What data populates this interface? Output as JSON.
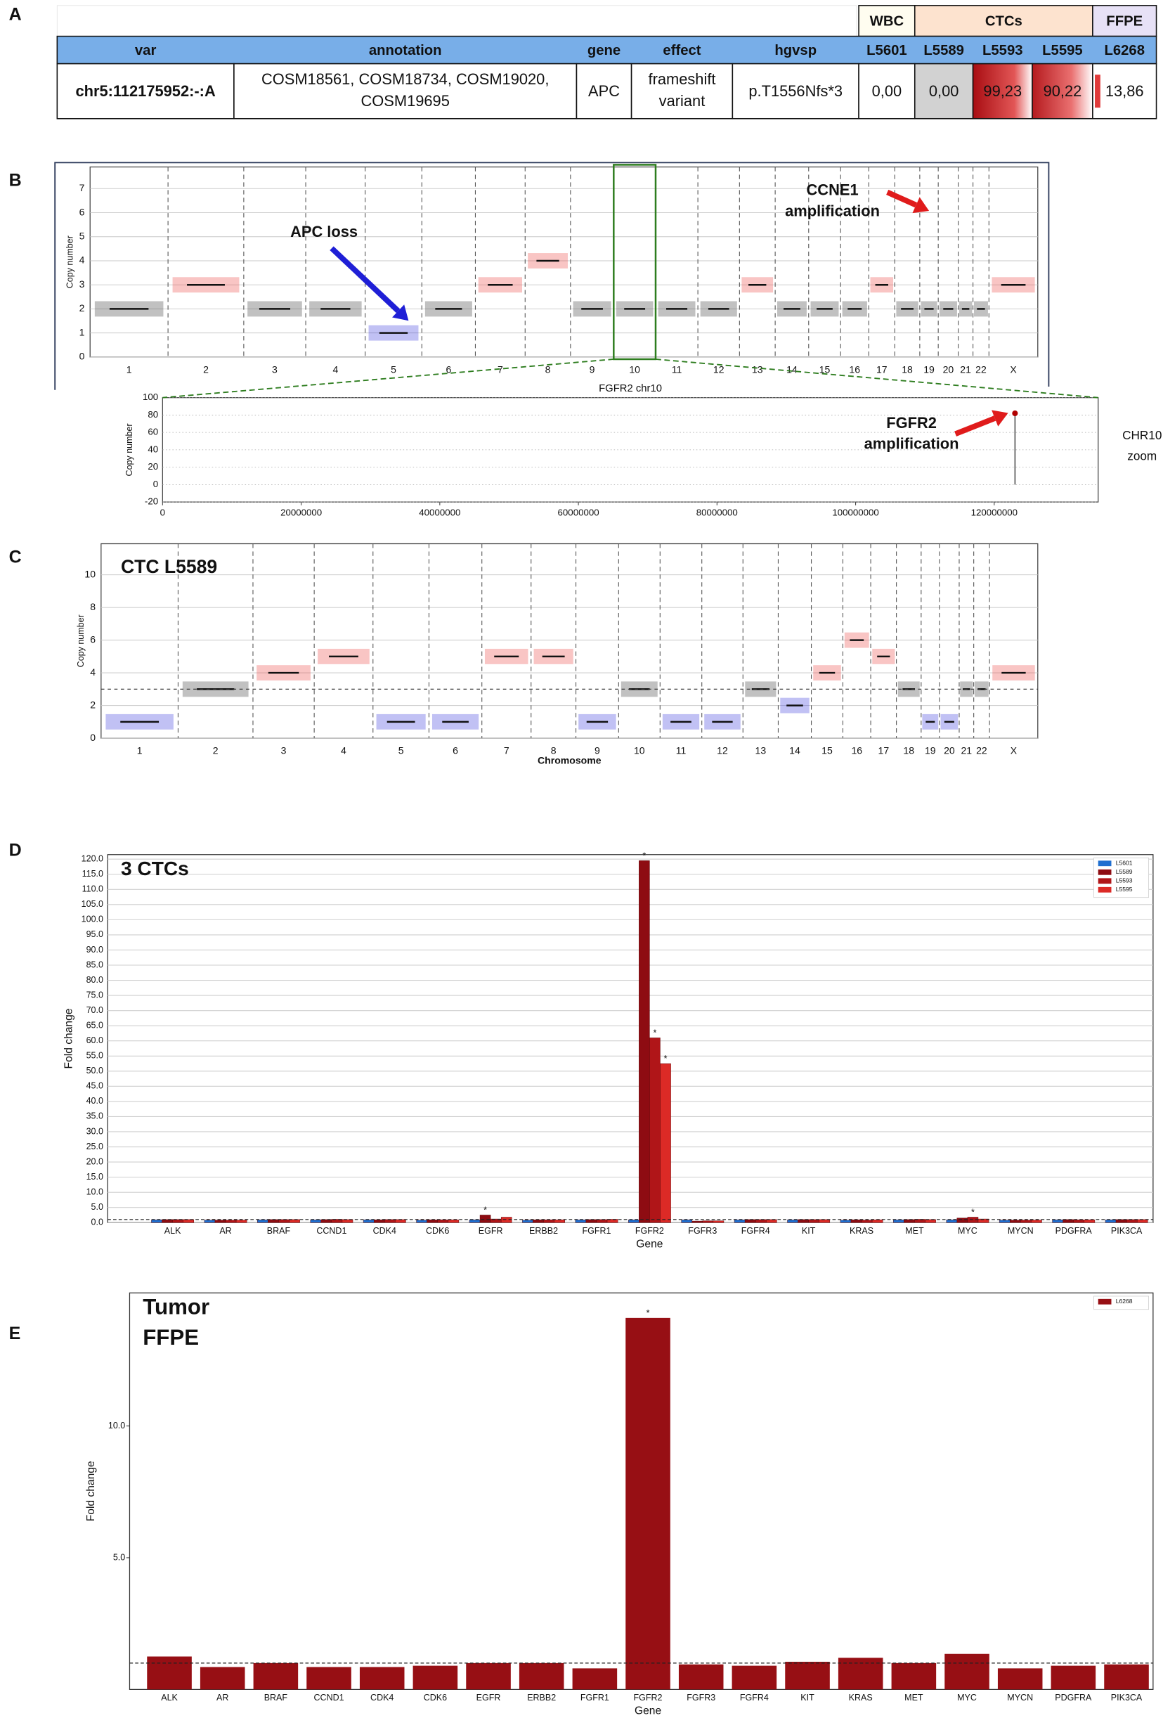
{
  "panel_labels": [
    "A",
    "B",
    "C",
    "D",
    "E"
  ],
  "table": {
    "groups": [
      "WBC",
      "CTCs",
      "FFPE"
    ],
    "columns": [
      "var",
      "annotation",
      "gene",
      "effect",
      "hgvsp",
      "L5601",
      "L5589",
      "L5593",
      "L5595",
      "L6268"
    ],
    "rows": [
      [
        "chr5:112175952:-:A",
        [
          "COSM18561, COSM18734, COSM19020,",
          "COSM19695"
        ],
        "APC",
        [
          "frameshift",
          "variant"
        ],
        "p.T1556Nfs*3",
        "0,00",
        "0,00",
        "99,23",
        "90,22",
        "13,86"
      ]
    ]
  },
  "chart_data": [
    {
      "type": "segments",
      "ylabel": "Copy number",
      "categories": [
        "1",
        "2",
        "3",
        "4",
        "5",
        "6",
        "7",
        "8",
        "9",
        "10",
        "11",
        "12",
        "13",
        "14",
        "15",
        "16",
        "17",
        "18",
        "19",
        "20",
        "21",
        "22",
        "X"
      ],
      "values": [
        2,
        3,
        2,
        2,
        1,
        2,
        3,
        4,
        2,
        2,
        2,
        2,
        3,
        2,
        2,
        2,
        3,
        2,
        2,
        2,
        2,
        2,
        3
      ],
      "colors": [
        "#222222",
        "#e8302a",
        "#222222",
        "#222222",
        "#1f1fd6",
        "#222222",
        "#e8302a",
        "#e8302a",
        "#222222",
        "#222222",
        "#222222",
        "#222222",
        "#e8302a",
        "#222222",
        "#222222",
        "#222222",
        "#e8302a",
        "#222222",
        "#222222",
        "#222222",
        "#222222",
        "#222222",
        "#e8302a"
      ],
      "ylim": [
        0,
        7.9
      ],
      "yticks": [
        0,
        1,
        2,
        3,
        4,
        5,
        6,
        7
      ],
      "grid": true,
      "annotations": [
        [
          "APC loss"
        ],
        [
          "CCNE1",
          "amplification"
        ]
      ],
      "annotation_colors": [
        "#1f1fd6",
        "#e01b1b"
      ]
    },
    {
      "type": "scatter",
      "title": "FGFR2 chr10",
      "ylabel": "Copy number",
      "x": [
        123000000
      ],
      "values": [
        82
      ],
      "color": "#b00000",
      "xlim": [
        0,
        135000000
      ],
      "ylim": [
        -20,
        100
      ],
      "xticks": [
        0,
        20000000,
        40000000,
        60000000,
        80000000,
        100000000,
        120000000
      ],
      "yticks": [
        -20,
        0,
        20,
        40,
        60,
        80,
        100
      ],
      "grid": true,
      "annotations": [
        [
          "FGFR2",
          "amplification"
        ],
        [
          "CHR10",
          "zoom"
        ]
      ],
      "annotation_colors": [
        "#e01b1b",
        "#e01b1b"
      ]
    },
    {
      "type": "segments",
      "title": "CTC L5589",
      "ylabel": "Copy number",
      "xlabel": "Chromosome",
      "categories": [
        "1",
        "2",
        "3",
        "4",
        "5",
        "6",
        "7",
        "8",
        "9",
        "10",
        "11",
        "12",
        "13",
        "14",
        "15",
        "16",
        "17",
        "18",
        "19",
        "20",
        "21",
        "22",
        "X"
      ],
      "values": [
        1,
        3,
        4,
        5,
        1,
        1,
        5,
        5,
        1,
        3,
        1,
        1,
        3,
        2,
        4,
        6,
        5,
        3,
        1,
        1,
        3,
        3,
        4
      ],
      "colors": [
        "#1f1fd6",
        "#222222",
        "#e8302a",
        "#e8302a",
        "#1f1fd6",
        "#1f1fd6",
        "#e8302a",
        "#e8302a",
        "#1f1fd6",
        "#222222",
        "#1f1fd6",
        "#1f1fd6",
        "#222222",
        "#1f1fd6",
        "#e8302a",
        "#e8302a",
        "#e8302a",
        "#222222",
        "#1f1fd6",
        "#1f1fd6",
        "#222222",
        "#222222",
        "#e8302a"
      ],
      "ylim": [
        0,
        11.9
      ],
      "yticks": [
        0,
        2,
        4,
        6,
        8,
        10
      ],
      "reference_line": 3,
      "grid": true
    },
    {
      "type": "bar",
      "title": "3 CTCs",
      "ylabel": "Fold change",
      "xlabel": "Gene",
      "categories": [
        "ALK",
        "AR",
        "BRAF",
        "CCND1",
        "CDK4",
        "CDK6",
        "EGFR",
        "ERBB2",
        "FGFR1",
        "FGFR2",
        "FGFR3",
        "FGFR4",
        "KIT",
        "KRAS",
        "MET",
        "MYC",
        "MYCN",
        "PDGFRA",
        "PIK3CA"
      ],
      "series": [
        {
          "name": "L5601",
          "color": "#1f6fd0",
          "values": [
            0.9,
            0.8,
            0.9,
            0.9,
            0.9,
            0.8,
            0.9,
            0.8,
            0.9,
            0.9,
            0.9,
            0.9,
            0.9,
            0.8,
            0.9,
            0.9,
            0.8,
            0.9,
            0.9
          ]
        },
        {
          "name": "L5589",
          "color": "#8e0c12",
          "values": [
            1.0,
            0.8,
            1.0,
            1.0,
            0.9,
            0.9,
            2.5,
            0.9,
            1.0,
            119.5,
            0.5,
            1.0,
            1.0,
            0.9,
            1.0,
            1.5,
            0.8,
            1.0,
            1.0
          ]
        },
        {
          "name": "L5593",
          "color": "#b01518",
          "values": [
            1.0,
            0.8,
            1.0,
            1.1,
            1.0,
            0.9,
            1.2,
            0.9,
            1.0,
            61.0,
            0.6,
            1.0,
            1.0,
            0.8,
            1.1,
            1.8,
            0.8,
            0.9,
            1.0
          ]
        },
        {
          "name": "L5595",
          "color": "#dc2a26",
          "values": [
            1.0,
            0.8,
            1.0,
            1.0,
            1.0,
            0.9,
            1.8,
            0.9,
            1.1,
            52.5,
            0.6,
            1.0,
            1.0,
            0.9,
            1.0,
            1.2,
            0.8,
            0.9,
            1.0
          ]
        }
      ],
      "ylim": [
        0,
        121.5
      ],
      "yticks": [
        {
          "value": 0,
          "label": "0.0"
        },
        {
          "value": 5,
          "label": "5.0"
        },
        {
          "value": 10,
          "label": "10.0"
        },
        {
          "value": 15,
          "label": "15.0"
        },
        {
          "value": 20,
          "label": "20.0"
        },
        {
          "value": 25,
          "label": "25.0"
        },
        {
          "value": 30,
          "label": "30.0"
        },
        {
          "value": 35,
          "label": "35.0"
        },
        {
          "value": 40,
          "label": "40.0"
        },
        {
          "value": 45,
          "label": "45.0"
        },
        {
          "value": 50,
          "label": "50.0"
        },
        {
          "value": 55,
          "label": "55.0"
        },
        {
          "value": 60,
          "label": "60.0"
        },
        {
          "value": 65,
          "label": "65.0"
        },
        {
          "value": 70,
          "label": "70.0"
        },
        {
          "value": 75,
          "label": "75.0"
        },
        {
          "value": 80,
          "label": "80.0"
        },
        {
          "value": 85,
          "label": "85.0"
        },
        {
          "value": 90,
          "label": "90.0"
        },
        {
          "value": 95,
          "label": "95.0"
        },
        {
          "value": 100,
          "label": "100.0"
        },
        {
          "value": 105,
          "label": "105.0"
        },
        {
          "value": 110,
          "label": "110.0"
        },
        {
          "value": 115,
          "label": "115.0"
        },
        {
          "value": 120,
          "label": "120.0"
        }
      ],
      "grid": true,
      "reference_line": 1,
      "legend": "top-right",
      "annotations": [
        {
          "text": "*",
          "series": 1,
          "index": 9
        },
        {
          "text": "*",
          "series": 2,
          "index": 9
        },
        {
          "text": "*",
          "series": 3,
          "index": 9
        },
        {
          "text": "*",
          "series": 1,
          "index": 6
        },
        {
          "text": "*",
          "series": 2,
          "index": 15
        }
      ]
    },
    {
      "type": "bar",
      "title": [
        "Tumor",
        "FFPE"
      ],
      "ylabel": "Fold change",
      "xlabel": "Gene",
      "categories": [
        "ALK",
        "AR",
        "BRAF",
        "CCND1",
        "CDK4",
        "CDK6",
        "EGFR",
        "ERBB2",
        "FGFR1",
        "FGFR2",
        "FGFR3",
        "FGFR4",
        "KIT",
        "KRAS",
        "MET",
        "MYC",
        "MYCN",
        "PDGFRA",
        "PIK3CA"
      ],
      "series": [
        {
          "name": "L6268",
          "color": "#970f14",
          "values": [
            1.25,
            0.85,
            1.0,
            0.85,
            0.85,
            0.9,
            1.0,
            1.0,
            0.8,
            14.1,
            0.95,
            0.9,
            1.05,
            1.2,
            1.0,
            1.35,
            0.8,
            0.9,
            0.95
          ]
        }
      ],
      "ylim": [
        0,
        15.05
      ],
      "yticks": [
        {
          "value": 5,
          "label": "5.0"
        },
        {
          "value": 10,
          "label": "10.0"
        }
      ],
      "grid": false,
      "reference_line": 1,
      "legend": "top-right",
      "annotations": [
        {
          "text": "*",
          "series": 0,
          "index": 9
        }
      ]
    }
  ]
}
